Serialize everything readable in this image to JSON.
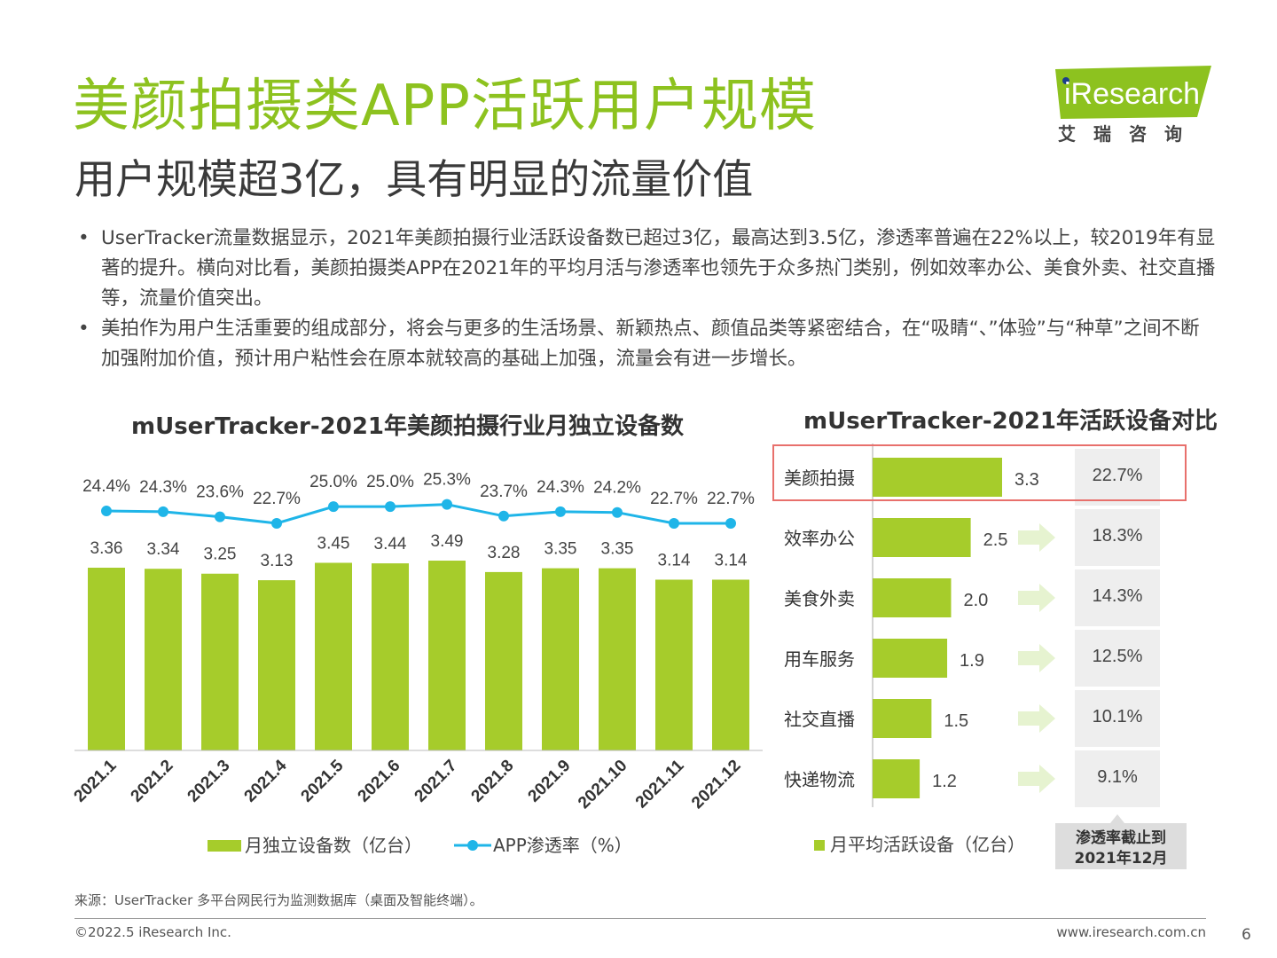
{
  "title": "美颜拍摄类APP活跃用户规模",
  "subtitle": "用户规模超3亿，具有明显的流量价值",
  "logo": {
    "text": "iResearch",
    "sub": "艾瑞咨询",
    "brand_color": "#8dc21f"
  },
  "bullets": [
    {
      "marker": "•",
      "text": "UserTracker流量数据显示，2021年美颜拍摄行业活跃设备数已超过3亿，最高达到3.5亿，渗透率普遍在22%以上，较2019年有显著的提升。横向对比看，美颜拍摄类APP在2021年的平均月活与渗透率也领先于众多热门类别，例如效率办公、美食外卖、社交直播等，流量价值突出。"
    },
    {
      "marker": "•",
      "text": "美拍作为用户生活重要的组成部分，将会与更多的生活场景、新颖热点、颜值品类等紧密结合，在“吸睛“、”体验”与“种草”之间不断加强附加价值，预计用户粘性会在原本就较高的基础上加强，流量会有进一步增长。"
    }
  ],
  "chart_data": [
    {
      "type": "bar",
      "title": "mUserTracker-2021年美颜拍摄行业月独立设备数",
      "categories": [
        "2021.1",
        "2021.2",
        "2021.3",
        "2021.4",
        "2021.5",
        "2021.6",
        "2021.7",
        "2021.8",
        "2021.9",
        "2021.10",
        "2021.11",
        "2021.12"
      ],
      "series": [
        {
          "name": "月独立设备数（亿台）",
          "kind": "bar",
          "color": "#a6cc2b",
          "values": [
            3.36,
            3.34,
            3.25,
            3.13,
            3.45,
            3.44,
            3.49,
            3.28,
            3.35,
            3.35,
            3.14,
            3.14
          ],
          "labels": [
            "3.36",
            "3.34",
            "3.25",
            "3.13",
            "3.45",
            "3.44",
            "3.49",
            "3.28",
            "3.35",
            "3.35",
            "3.14",
            "3.14"
          ]
        },
        {
          "name": "APP渗透率（%）",
          "kind": "line",
          "color": "#1fb5e8",
          "values": [
            24.4,
            24.3,
            23.6,
            22.7,
            25.0,
            25.0,
            25.3,
            23.7,
            24.3,
            24.2,
            22.7,
            22.7
          ],
          "labels": [
            "24.4%",
            "24.3%",
            "23.6%",
            "22.7%",
            "25.0%",
            "25.0%",
            "25.3%",
            "23.7%",
            "24.3%",
            "24.2%",
            "22.7%",
            "22.7%"
          ]
        }
      ],
      "bar_ylim": [
        0,
        3.6
      ],
      "line_ylim": [
        0,
        30
      ],
      "legend": "bottom"
    },
    {
      "type": "bar",
      "orientation": "horizontal",
      "title": "mUserTracker-2021年活跃设备对比",
      "categories": [
        "美颜拍摄",
        "效率办公",
        "美食外卖",
        "用车服务",
        "社交直播",
        "快递物流"
      ],
      "series": [
        {
          "name": "月平均活跃设备（亿台）",
          "color": "#a6cc2b",
          "values": [
            3.3,
            2.5,
            2.0,
            1.9,
            1.5,
            1.2
          ],
          "labels": [
            "3.3",
            "2.5",
            "2.0",
            "1.9",
            "1.5",
            "1.2"
          ]
        }
      ],
      "penetration": {
        "values": [
          22.7,
          18.3,
          14.3,
          12.5,
          10.1,
          9.1
        ],
        "labels": [
          "22.7%",
          "18.3%",
          "14.3%",
          "12.5%",
          "10.1%",
          "9.1%"
        ],
        "caption_line1": "渗透率截止到",
        "caption_line2": "2021年12月"
      },
      "xlim": [
        0,
        3.6
      ],
      "highlight": "美颜拍摄",
      "highlight_color": "#e8706c",
      "legend": "bottom"
    }
  ],
  "footer": {
    "source": "来源：UserTracker 多平台网民行为监测数据库（桌面及智能终端）。",
    "copyright": "©2022.5 iResearch Inc.",
    "website": "www.iresearch.com.cn",
    "page": "6"
  }
}
